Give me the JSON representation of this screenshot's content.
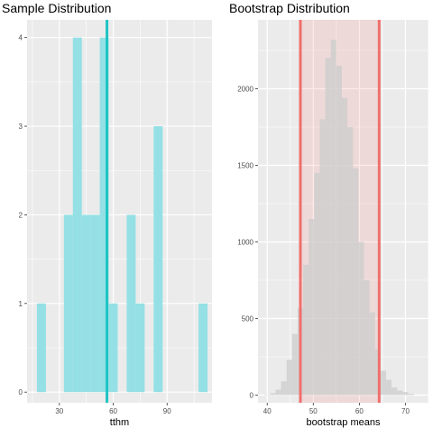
{
  "chart_data": [
    {
      "type": "histogram",
      "title": "Sample Distribution",
      "xlabel": "tthm",
      "ylabel": "",
      "xlim": [
        12,
        115
      ],
      "ylim": [
        -0.12,
        4.2
      ],
      "x_ticks": [
        30,
        60,
        90
      ],
      "y_ticks": [
        0,
        1,
        2,
        3,
        4
      ],
      "bin_width": 5,
      "bar_color": "#94e0e5",
      "bins": [
        {
          "x": 20,
          "count": 1
        },
        {
          "x": 25,
          "count": 0
        },
        {
          "x": 30,
          "count": 0
        },
        {
          "x": 35,
          "count": 2
        },
        {
          "x": 40,
          "count": 4
        },
        {
          "x": 45,
          "count": 2
        },
        {
          "x": 50,
          "count": 2
        },
        {
          "x": 55,
          "count": 4
        },
        {
          "x": 60,
          "count": 1
        },
        {
          "x": 65,
          "count": 0
        },
        {
          "x": 70,
          "count": 2
        },
        {
          "x": 75,
          "count": 1
        },
        {
          "x": 80,
          "count": 0
        },
        {
          "x": 85,
          "count": 3
        },
        {
          "x": 90,
          "count": 0
        },
        {
          "x": 95,
          "count": 0
        },
        {
          "x": 100,
          "count": 0
        },
        {
          "x": 105,
          "count": 0
        },
        {
          "x": 110,
          "count": 1
        }
      ],
      "vline": {
        "x": 56.5,
        "color": "#1fc4c4"
      },
      "grid": true
    },
    {
      "type": "histogram",
      "title": "Bootstrap Distribution",
      "xlabel": "bootstrap means",
      "ylabel": "",
      "xlim": [
        38,
        75
      ],
      "ylim": [
        -50,
        2450
      ],
      "x_ticks": [
        40,
        50,
        60,
        70
      ],
      "y_ticks": [
        0,
        500,
        1000,
        1500,
        2000
      ],
      "bin_width": 1.2,
      "bar_color": "#cccccc",
      "bins": [
        {
          "x": 40.0,
          "count": 3
        },
        {
          "x": 41.2,
          "count": 12
        },
        {
          "x": 42.4,
          "count": 35
        },
        {
          "x": 43.6,
          "count": 90
        },
        {
          "x": 44.8,
          "count": 230
        },
        {
          "x": 46.0,
          "count": 400
        },
        {
          "x": 47.2,
          "count": 570
        },
        {
          "x": 48.4,
          "count": 850
        },
        {
          "x": 49.6,
          "count": 1150
        },
        {
          "x": 50.8,
          "count": 1450
        },
        {
          "x": 52.0,
          "count": 1800
        },
        {
          "x": 53.2,
          "count": 2200
        },
        {
          "x": 54.4,
          "count": 2320
        },
        {
          "x": 55.6,
          "count": 2150
        },
        {
          "x": 56.8,
          "count": 1940
        },
        {
          "x": 58.0,
          "count": 1750
        },
        {
          "x": 59.2,
          "count": 1480
        },
        {
          "x": 60.4,
          "count": 1000
        },
        {
          "x": 61.6,
          "count": 750
        },
        {
          "x": 62.8,
          "count": 540
        },
        {
          "x": 64.0,
          "count": 300
        },
        {
          "x": 65.2,
          "count": 160
        },
        {
          "x": 66.4,
          "count": 100
        },
        {
          "x": 67.6,
          "count": 50
        },
        {
          "x": 68.8,
          "count": 30
        },
        {
          "x": 70.0,
          "count": 20
        },
        {
          "x": 71.2,
          "count": 8
        }
      ],
      "ci_band": {
        "lower": 47.2,
        "upper": 64.3,
        "color": "#ef6f6c"
      },
      "grid": true
    }
  ]
}
